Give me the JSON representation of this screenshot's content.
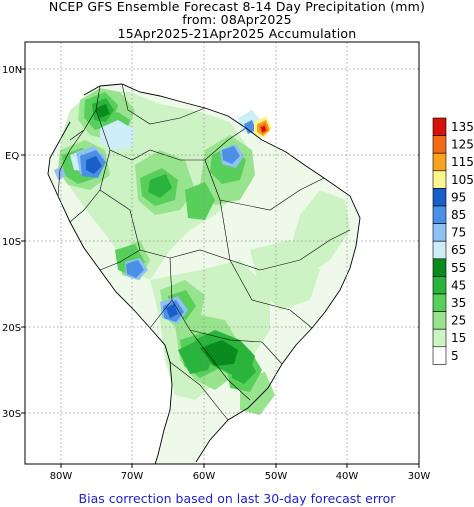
{
  "header": {
    "line1": "NCEP GFS Ensemble Forecast 8-14 Day Precipitation (mm)",
    "line2": "from: 08Apr2025",
    "line3": "15Apr2025-21Apr2025 Accumulation"
  },
  "axes": {
    "lat_labels": [
      "10N",
      "EQ",
      "10S",
      "20S",
      "30S"
    ],
    "lon_labels": [
      "80W",
      "70W",
      "60W",
      "50W",
      "40W",
      "30W"
    ]
  },
  "legend": {
    "values": [
      "135",
      "125",
      "115",
      "105",
      "95",
      "85",
      "75",
      "65",
      "55",
      "45",
      "35",
      "25",
      "15",
      "5"
    ],
    "colors": [
      "#d6100a",
      "#f26a16",
      "#f6a321",
      "#fcf48c",
      "#1a5ec9",
      "#4a90e6",
      "#8fc2f2",
      "#cdeef8",
      "#0a8b1e",
      "#2bb43d",
      "#58cf5b",
      "#97e38e",
      "#cdf3c4",
      "#ffffff"
    ]
  },
  "footer": {
    "note": "Bias correction based on last 30-day forecast error"
  }
}
